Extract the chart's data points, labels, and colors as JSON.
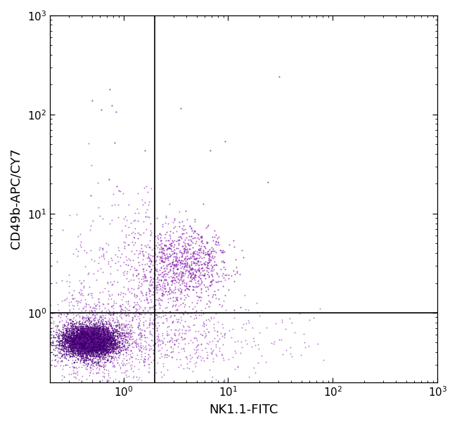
{
  "xlabel": "NK1.1-FITC",
  "ylabel": "CD49b-APC/CY7",
  "xlim": [
    0.2,
    1000
  ],
  "ylim": [
    0.2,
    1000
  ],
  "dot_color": "#8b20b0",
  "dot_color_dense": "#3d006e",
  "background_color": "#ffffff",
  "gate_x": 2.0,
  "gate_y": 1.0,
  "xlabel_fontsize": 13,
  "ylabel_fontsize": 13,
  "tick_fontsize": 11
}
